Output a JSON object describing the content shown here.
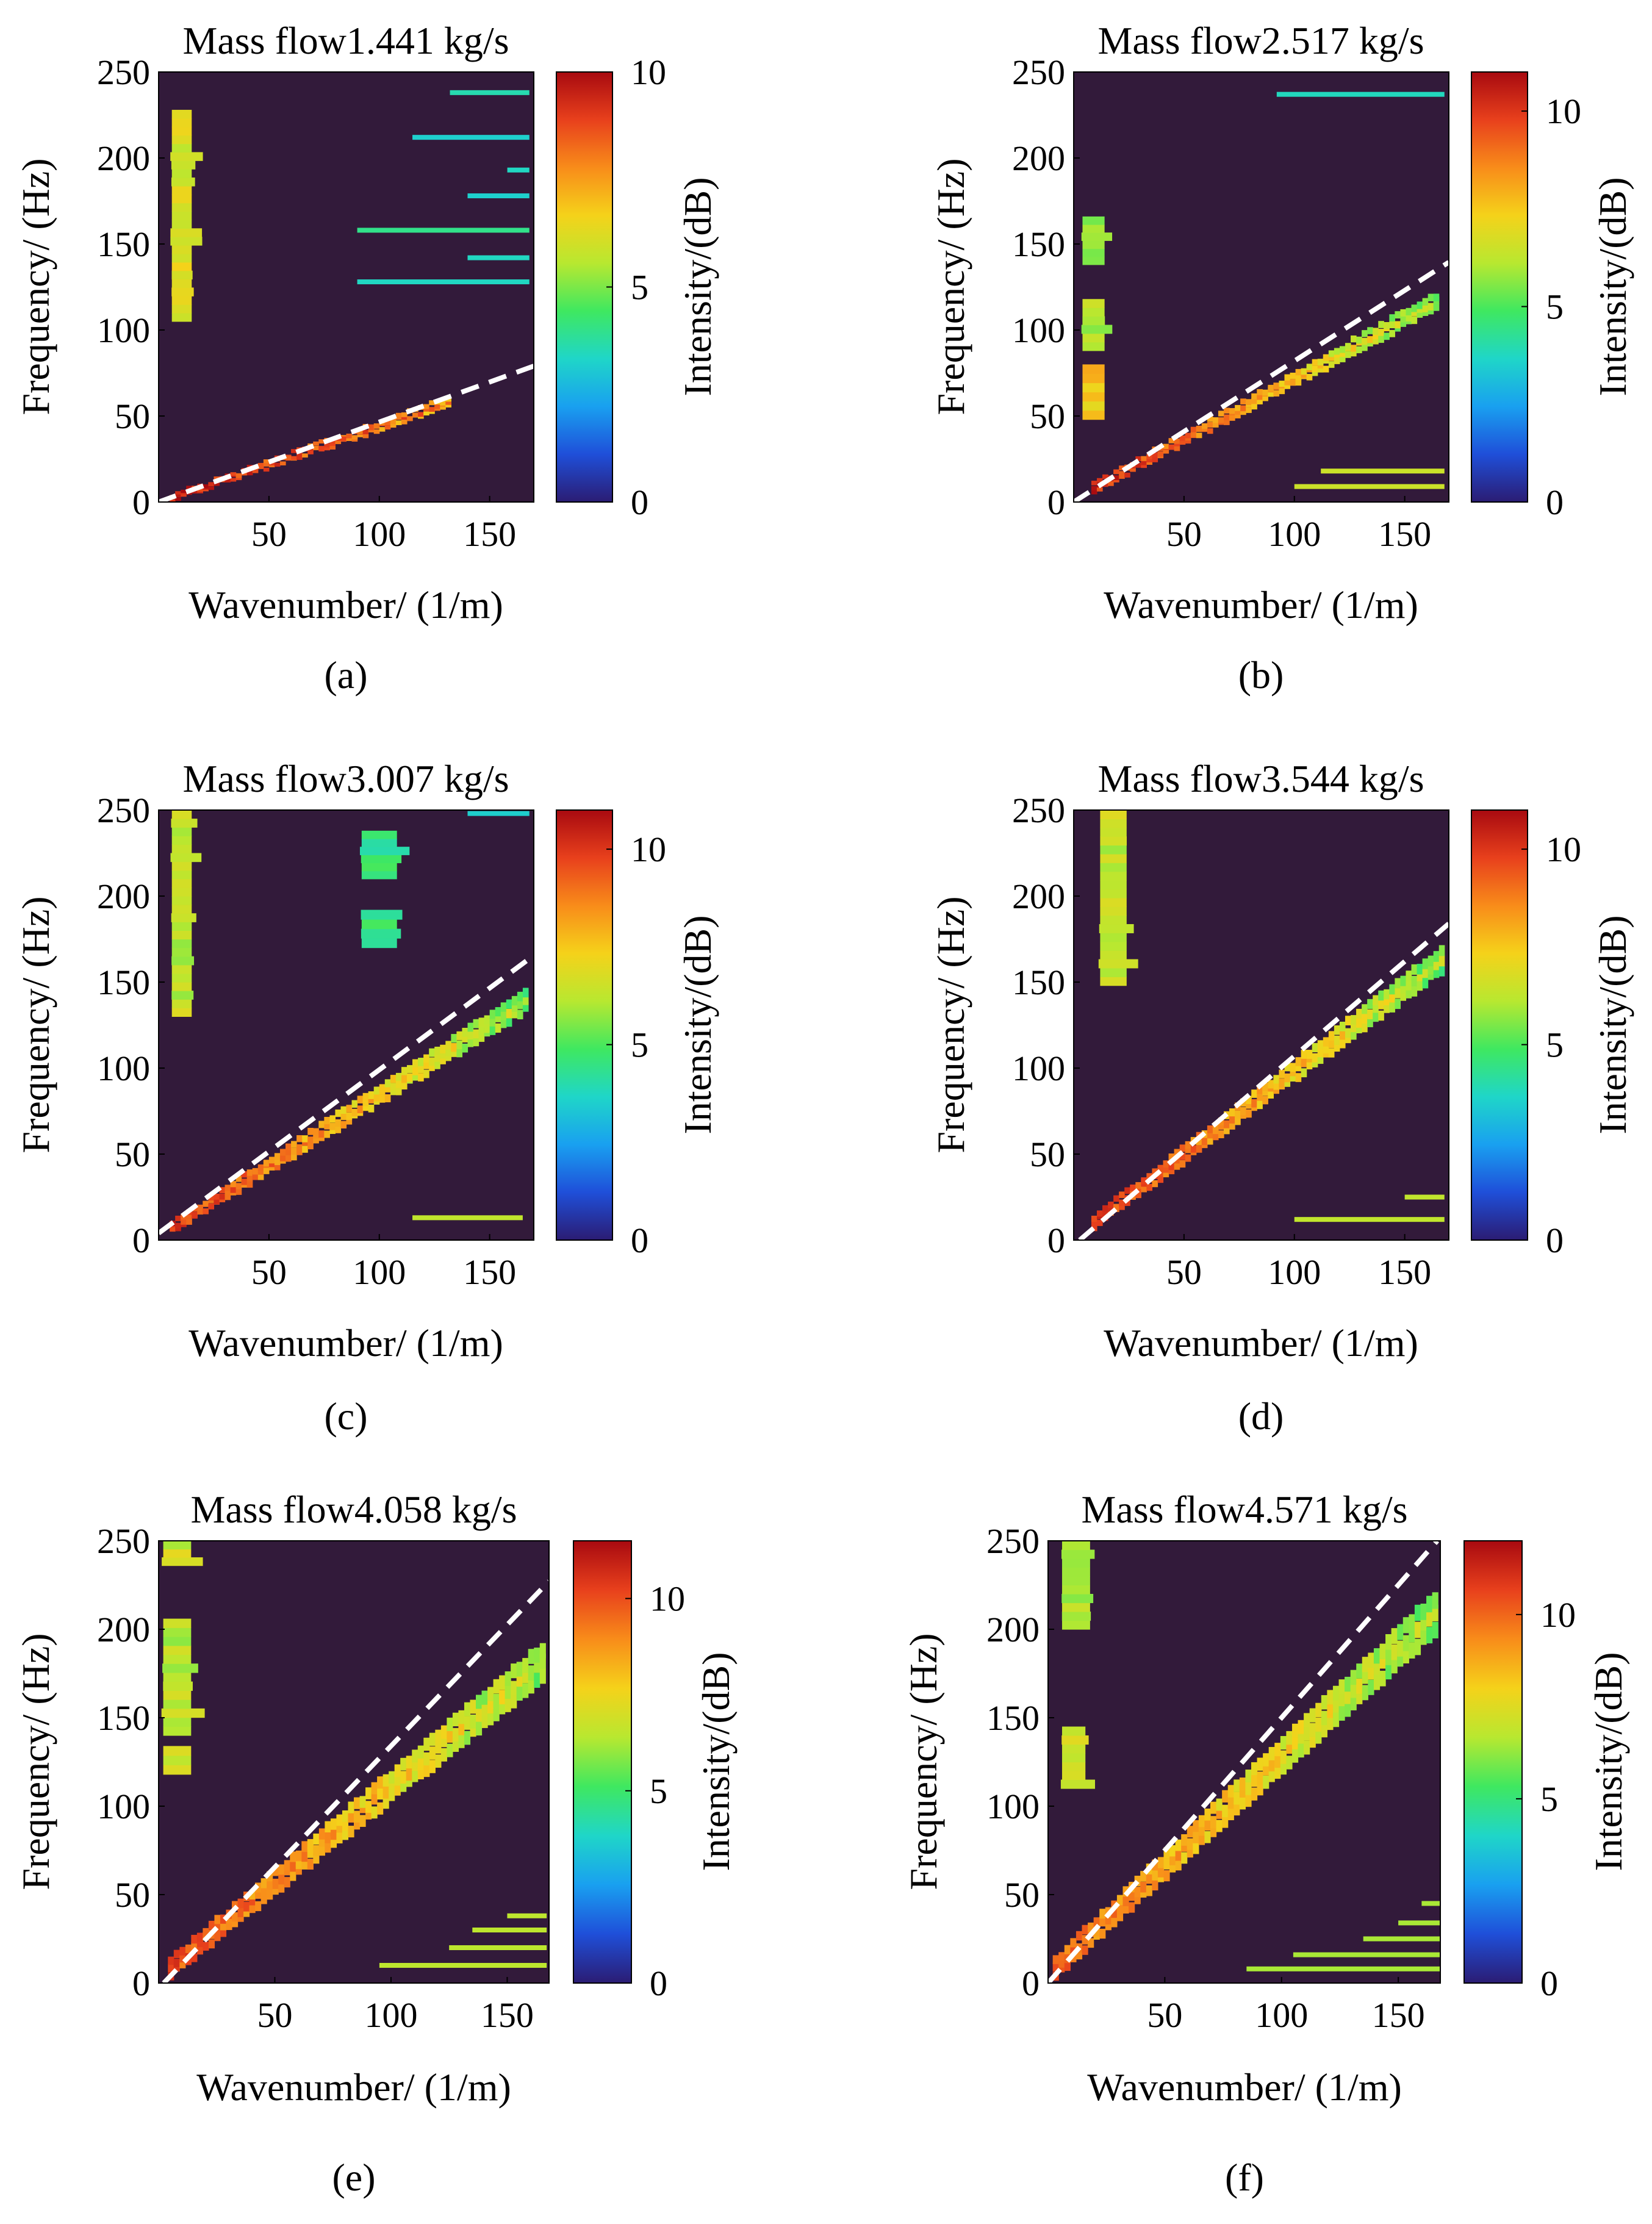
{
  "colors": {
    "background": "#ffffff",
    "plot_background": "#321a3a",
    "dashed_line": "#ffffff",
    "colormap": [
      "#2b1c73",
      "#1f4fd9",
      "#19a0f0",
      "#1fd6c8",
      "#3fe860",
      "#b8e830",
      "#f5d21a",
      "#f88c1a",
      "#e8401c",
      "#a80a10"
    ]
  },
  "chart_data": [
    {
      "type": "heatmap",
      "panel_label": "(a)",
      "title": "Mass flow1.441 kg/s",
      "xlabel": "Wavenumber/ (1/m)",
      "ylabel": "Frequency/ (Hz)",
      "colorbar_label": "Intensity/(dB)",
      "xlim": [
        0,
        170
      ],
      "ylim": [
        0,
        250
      ],
      "xticks": [
        50,
        100,
        150
      ],
      "yticks": [
        0,
        50,
        100,
        150,
        200,
        250
      ],
      "clim": [
        0,
        10
      ],
      "cticks": [
        0,
        5,
        10
      ],
      "dashed_line": {
        "slope": 0.465,
        "intercept": 0
      },
      "ridge": {
        "k_start": 5,
        "k_end": 132,
        "slope": 0.44,
        "intercept": 0,
        "width_hz": 5,
        "value_low": 9.5,
        "value_high": 8.0
      },
      "blocks": [
        {
          "k0": 6,
          "k1": 15,
          "f0": 105,
          "f1": 228,
          "value": 6.2
        }
      ],
      "hlines": [
        {
          "f": 238,
          "k0": 132,
          "k1": 168,
          "value": 3.6
        },
        {
          "f": 212,
          "k0": 115,
          "k1": 168,
          "value": 3.2
        },
        {
          "f": 193,
          "k0": 158,
          "k1": 168,
          "value": 3.4
        },
        {
          "f": 178,
          "k0": 140,
          "k1": 168,
          "value": 3.2
        },
        {
          "f": 158,
          "k0": 90,
          "k1": 168,
          "value": 4.0
        },
        {
          "f": 142,
          "k0": 140,
          "k1": 168,
          "value": 3.4
        },
        {
          "f": 128,
          "k0": 90,
          "k1": 168,
          "value": 3.4
        }
      ]
    },
    {
      "type": "heatmap",
      "panel_label": "(b)",
      "title": "Mass flow2.517 kg/s",
      "xlabel": "Wavenumber/ (1/m)",
      "ylabel": "Frequency/ (Hz)",
      "colorbar_label": "Intensity/(dB)",
      "xlim": [
        0,
        170
      ],
      "ylim": [
        0,
        250
      ],
      "xticks": [
        50,
        100,
        150
      ],
      "yticks": [
        0,
        50,
        100,
        150,
        200,
        250
      ],
      "clim": [
        0,
        11
      ],
      "cticks": [
        0,
        5,
        10
      ],
      "dashed_line": {
        "slope": 0.82,
        "intercept": 0
      },
      "ridge": {
        "k_start": 8,
        "k_end": 165,
        "slope": 0.7,
        "intercept": 2,
        "width_hz": 9,
        "value_low": 10.3,
        "value_high": 6.0
      },
      "blocks": [
        {
          "k0": 4,
          "k1": 14,
          "f0": 138,
          "f1": 166,
          "value": 6.0
        },
        {
          "k0": 4,
          "k1": 14,
          "f0": 88,
          "f1": 118,
          "value": 6.0
        },
        {
          "k0": 4,
          "k1": 14,
          "f0": 48,
          "f1": 80,
          "value": 7.5
        }
      ],
      "hlines": [
        {
          "f": 237,
          "k0": 92,
          "k1": 168,
          "value": 3.8
        },
        {
          "f": 18,
          "k0": 112,
          "k1": 168,
          "value": 6.5
        },
        {
          "f": 9,
          "k0": 100,
          "k1": 168,
          "value": 6.5
        }
      ]
    },
    {
      "type": "heatmap",
      "panel_label": "(c)",
      "title": "Mass flow3.007 kg/s",
      "xlabel": "Wavenumber/ (1/m)",
      "ylabel": "Frequency/ (Hz)",
      "colorbar_label": "Intensity/(dB)",
      "xlim": [
        0,
        170
      ],
      "ylim": [
        0,
        250
      ],
      "xticks": [
        50,
        100,
        150
      ],
      "yticks": [
        0,
        50,
        100,
        150,
        200,
        250
      ],
      "clim": [
        0,
        11
      ],
      "cticks": [
        0,
        5,
        10
      ],
      "dashed_line": {
        "slope": 0.95,
        "intercept": 4
      },
      "ridge": {
        "k_start": 5,
        "k_end": 167,
        "slope": 0.82,
        "intercept": 3,
        "width_hz": 12,
        "value_low": 10.0,
        "value_high": 6.0
      },
      "blocks": [
        {
          "k0": 6,
          "k1": 15,
          "f0": 130,
          "f1": 250,
          "value": 6.3
        },
        {
          "k0": 92,
          "k1": 108,
          "f0": 170,
          "f1": 192,
          "value": 4.5
        },
        {
          "k0": 92,
          "k1": 108,
          "f0": 210,
          "f1": 238,
          "value": 4.5
        }
      ],
      "hlines": [
        {
          "f": 13,
          "k0": 115,
          "k1": 165,
          "value": 6.3
        },
        {
          "f": 248,
          "k0": 140,
          "k1": 168,
          "value": 3.5
        }
      ]
    },
    {
      "type": "heatmap",
      "panel_label": "(d)",
      "title": "Mass flow3.544 kg/s",
      "xlabel": "Wavenumber/ (1/m)",
      "ylabel": "Frequency/ (Hz)",
      "colorbar_label": "Intensity/(dB)",
      "xlim": [
        0,
        170
      ],
      "ylim": [
        0,
        250
      ],
      "xticks": [
        50,
        100,
        150
      ],
      "yticks": [
        0,
        50,
        100,
        150,
        200,
        250
      ],
      "clim": [
        0,
        11
      ],
      "cticks": [
        0,
        5,
        10
      ],
      "dashed_line": {
        "slope": 1.1,
        "intercept": -3
      },
      "ridge": {
        "k_start": 8,
        "k_end": 168,
        "slope": 0.97,
        "intercept": 2,
        "width_hz": 14,
        "value_low": 10.0,
        "value_high": 6.0
      },
      "blocks": [
        {
          "k0": 12,
          "k1": 24,
          "f0": 148,
          "f1": 250,
          "value": 6.3
        }
      ],
      "hlines": [
        {
          "f": 12,
          "k0": 100,
          "k1": 168,
          "value": 6.3
        },
        {
          "f": 25,
          "k0": 150,
          "k1": 168,
          "value": 6.3
        }
      ]
    },
    {
      "type": "heatmap",
      "panel_label": "(e)",
      "title": "Mass flow4.058 kg/s",
      "xlabel": "Wavenumber/ (1/m)",
      "ylabel": "Frequency/ (Hz)",
      "colorbar_label": "Intensity/(dB)",
      "xlim": [
        0,
        168
      ],
      "ylim": [
        0,
        250
      ],
      "xticks": [
        50,
        100,
        150
      ],
      "yticks": [
        0,
        50,
        100,
        150,
        200,
        250
      ],
      "clim": [
        0,
        11.5
      ],
      "cticks": [
        0,
        5,
        10
      ],
      "dashed_line": {
        "slope": 1.37,
        "intercept": -3
      },
      "ridge": {
        "k_start": 4,
        "k_end": 166,
        "slope": 1.08,
        "intercept": 4,
        "width_hz": 20,
        "value_low": 10.0,
        "value_high": 6.5
      },
      "blocks": [
        {
          "k0": 2,
          "k1": 14,
          "f0": 236,
          "f1": 250,
          "value": 6.8
        },
        {
          "k0": 2,
          "k1": 14,
          "f0": 140,
          "f1": 206,
          "value": 6.5
        },
        {
          "k0": 2,
          "k1": 14,
          "f0": 118,
          "f1": 134,
          "value": 7.0
        }
      ],
      "hlines": [
        {
          "f": 10,
          "k0": 95,
          "k1": 167,
          "value": 6.5
        },
        {
          "f": 20,
          "k0": 125,
          "k1": 167,
          "value": 6.5
        },
        {
          "f": 30,
          "k0": 135,
          "k1": 167,
          "value": 6.5
        },
        {
          "f": 38,
          "k0": 150,
          "k1": 167,
          "value": 6.5
        }
      ]
    },
    {
      "type": "heatmap",
      "panel_label": "(f)",
      "title": "Mass flow4.571 kg/s",
      "xlabel": "Wavenumber/ (1/m)",
      "ylabel": "Frequency/ (Hz)",
      "colorbar_label": "Intensity/(dB)",
      "xlim": [
        0,
        168
      ],
      "ylim": [
        0,
        250
      ],
      "xticks": [
        50,
        100,
        150
      ],
      "yticks": [
        0,
        50,
        100,
        150,
        200,
        250
      ],
      "clim": [
        0,
        12
      ],
      "cticks": [
        0,
        5,
        10
      ],
      "dashed_line": {
        "slope": 1.5,
        "intercept": 0
      },
      "ridge": {
        "k_start": 2,
        "k_end": 166,
        "slope": 1.23,
        "intercept": 6,
        "width_hz": 22,
        "value_low": 10.0,
        "value_high": 6.5
      },
      "blocks": [
        {
          "k0": 6,
          "k1": 18,
          "f0": 200,
          "f1": 250,
          "value": 6.5
        },
        {
          "k0": 6,
          "k1": 16,
          "f0": 110,
          "f1": 145,
          "value": 7.2
        }
      ],
      "hlines": [
        {
          "f": 8,
          "k0": 85,
          "k1": 168,
          "value": 6.5
        },
        {
          "f": 16,
          "k0": 105,
          "k1": 168,
          "value": 6.5
        },
        {
          "f": 25,
          "k0": 135,
          "k1": 168,
          "value": 6.5
        },
        {
          "f": 34,
          "k0": 150,
          "k1": 168,
          "value": 6.5
        },
        {
          "f": 45,
          "k0": 160,
          "k1": 168,
          "value": 6.5
        }
      ]
    }
  ]
}
